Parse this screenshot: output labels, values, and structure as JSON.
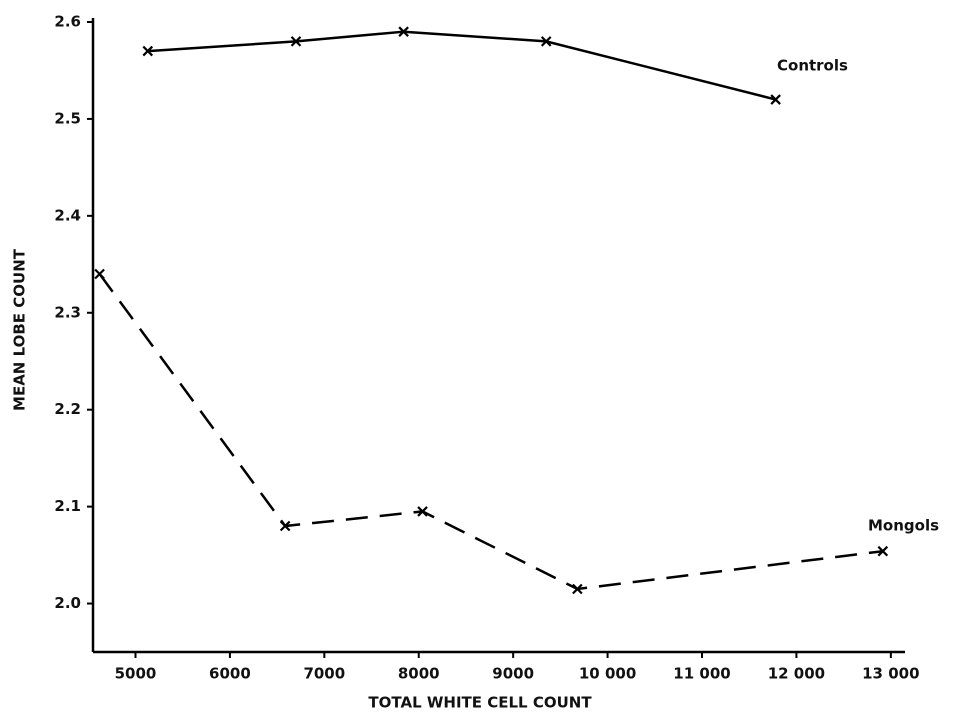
{
  "chart_data": {
    "type": "line",
    "xlabel": "TOTAL  WHITE  CELL  COUNT",
    "ylabel": "MEAN LOBE COUNT",
    "annotations": [
      "Controls",
      "Mongols"
    ],
    "series": [
      {
        "name": "Controls",
        "color": "#000000",
        "line_style": "solid",
        "marker": "x",
        "x": [
          5130,
          6700,
          7840,
          9350,
          11780
        ],
        "values": [
          2.57,
          2.58,
          2.59,
          2.58,
          2.52
        ]
      },
      {
        "name": "Mongols",
        "color": "#000000",
        "line_style": "dashed",
        "marker": "x",
        "x": [
          4620,
          6585,
          8040,
          9680,
          12915
        ],
        "values": [
          2.34,
          2.08,
          2.095,
          2.015,
          2.054
        ]
      }
    ],
    "xlim": [
      4550,
      13150
    ],
    "xticks": [
      5000,
      6000,
      7000,
      8000,
      9000,
      {
        "value": 10000,
        "label": "10 000"
      },
      {
        "value": 11000,
        "label": "11 000"
      },
      {
        "value": 12000,
        "label": "12 000"
      },
      {
        "value": 13000,
        "label": "13 000"
      }
    ],
    "ylim": [
      1.95,
      2.6
    ],
    "yticks": [
      {
        "value": 2,
        "label": "2.0"
      },
      2.1,
      2.2,
      2.3,
      2.4,
      2.5,
      2.6
    ],
    "grid": false
  }
}
